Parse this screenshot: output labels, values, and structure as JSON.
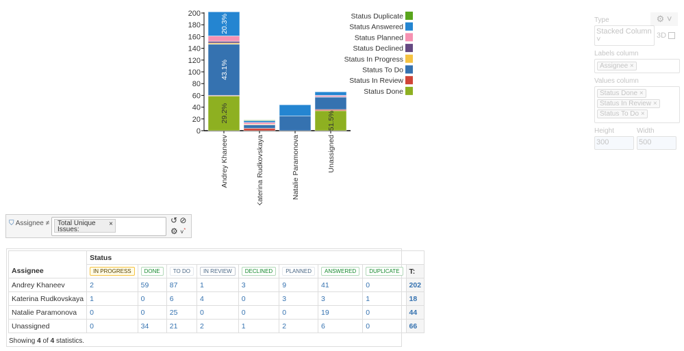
{
  "chart_data": {
    "type": "bar",
    "stacked": true,
    "categories": [
      "Andrey Khaneev",
      "Katerina Rudkovskaya",
      "Natalie Paramonova",
      "Unassigned"
    ],
    "ylim": [
      0,
      200
    ],
    "yticks": [
      0,
      20,
      40,
      60,
      80,
      100,
      120,
      140,
      160,
      180,
      200
    ],
    "legend_position": "right",
    "series": [
      {
        "name": "Status Done",
        "color": "#8eb021",
        "values": [
          59,
          0,
          0,
          34
        ]
      },
      {
        "name": "Status In Review",
        "color": "#d04437",
        "values": [
          1,
          4,
          0,
          2
        ]
      },
      {
        "name": "Status To Do",
        "color": "#3572b0",
        "values": [
          87,
          6,
          25,
          21
        ]
      },
      {
        "name": "Status In Progress",
        "color": "#f6c342",
        "values": [
          2,
          1,
          0,
          0
        ]
      },
      {
        "name": "Status Declined",
        "color": "#654982",
        "values": [
          3,
          0,
          0,
          1
        ]
      },
      {
        "name": "Status Planned",
        "color": "#f691b2",
        "values": [
          9,
          3,
          0,
          2
        ]
      },
      {
        "name": "Status Answered",
        "color": "#2485d1",
        "values": [
          41,
          3,
          19,
          6
        ]
      },
      {
        "name": "Status Duplicate",
        "color": "#59a51d",
        "values": [
          0,
          1,
          0,
          0
        ]
      }
    ],
    "data_labels": [
      {
        "category": 0,
        "series": 0,
        "text": "29.2%"
      },
      {
        "category": 0,
        "series": 2,
        "text": "43.1%"
      },
      {
        "category": 0,
        "series": 6,
        "text": "20.3%"
      },
      {
        "category": 3,
        "series": 0,
        "text": "51.5%"
      }
    ]
  },
  "settings": {
    "type_label": "Type",
    "type_value": "Stacked Column",
    "threeD": "3D",
    "labels_label": "Labels column",
    "labels_tags": [
      "Assignee"
    ],
    "values_label": "Values column",
    "values_tags": [
      "Status Done",
      "Status In Review",
      "Status To Do"
    ],
    "height_label": "Height",
    "height_value": "300",
    "width_label": "Width",
    "width_value": "500"
  },
  "filter": {
    "label": "Assignee ≠",
    "chip": "Total Unique Issues:"
  },
  "table": {
    "assignee_header": "Assignee",
    "status_header": "Status",
    "total_header": "T:",
    "statuses": [
      {
        "label": "IN PROGRESS",
        "color": "#594300",
        "bg": "#fffbe6",
        "border": "#f6c342"
      },
      {
        "label": "DONE",
        "color": "#14892c",
        "bg": "#fff",
        "border": "#b2d8b9"
      },
      {
        "label": "TO DO",
        "color": "#4a6785",
        "bg": "#fff",
        "border": "#e4e8ed"
      },
      {
        "label": "IN REVIEW",
        "color": "#4a6785",
        "bg": "#fff",
        "border": "#c1c7d0"
      },
      {
        "label": "DECLINED",
        "color": "#14892c",
        "bg": "#fff",
        "border": "#b2d8b9"
      },
      {
        "label": "PLANNED",
        "color": "#4a6785",
        "bg": "#fff",
        "border": "#e4e8ed"
      },
      {
        "label": "ANSWERED",
        "color": "#14892c",
        "bg": "#fff",
        "border": "#b2d8b9"
      },
      {
        "label": "DUPLICATE",
        "color": "#14892c",
        "bg": "#fff",
        "border": "#b2d8b9"
      }
    ],
    "rows": [
      {
        "name": "Andrey Khaneev",
        "values": [
          "2",
          "59",
          "87",
          "1",
          "3",
          "9",
          "41",
          "0"
        ],
        "total": "202"
      },
      {
        "name": "Katerina Rudkovskaya",
        "values": [
          "1",
          "0",
          "6",
          "4",
          "0",
          "3",
          "3",
          "1"
        ],
        "total": "18"
      },
      {
        "name": "Natalie Paramonova",
        "values": [
          "0",
          "0",
          "25",
          "0",
          "0",
          "0",
          "19",
          "0"
        ],
        "total": "44"
      },
      {
        "name": "Unassigned",
        "values": [
          "0",
          "34",
          "21",
          "2",
          "1",
          "2",
          "6",
          "0"
        ],
        "total": "66"
      }
    ],
    "footer": {
      "pre": "Showing ",
      "shown": "4",
      "mid": " of ",
      "total": "4",
      "post": " statistics."
    }
  }
}
